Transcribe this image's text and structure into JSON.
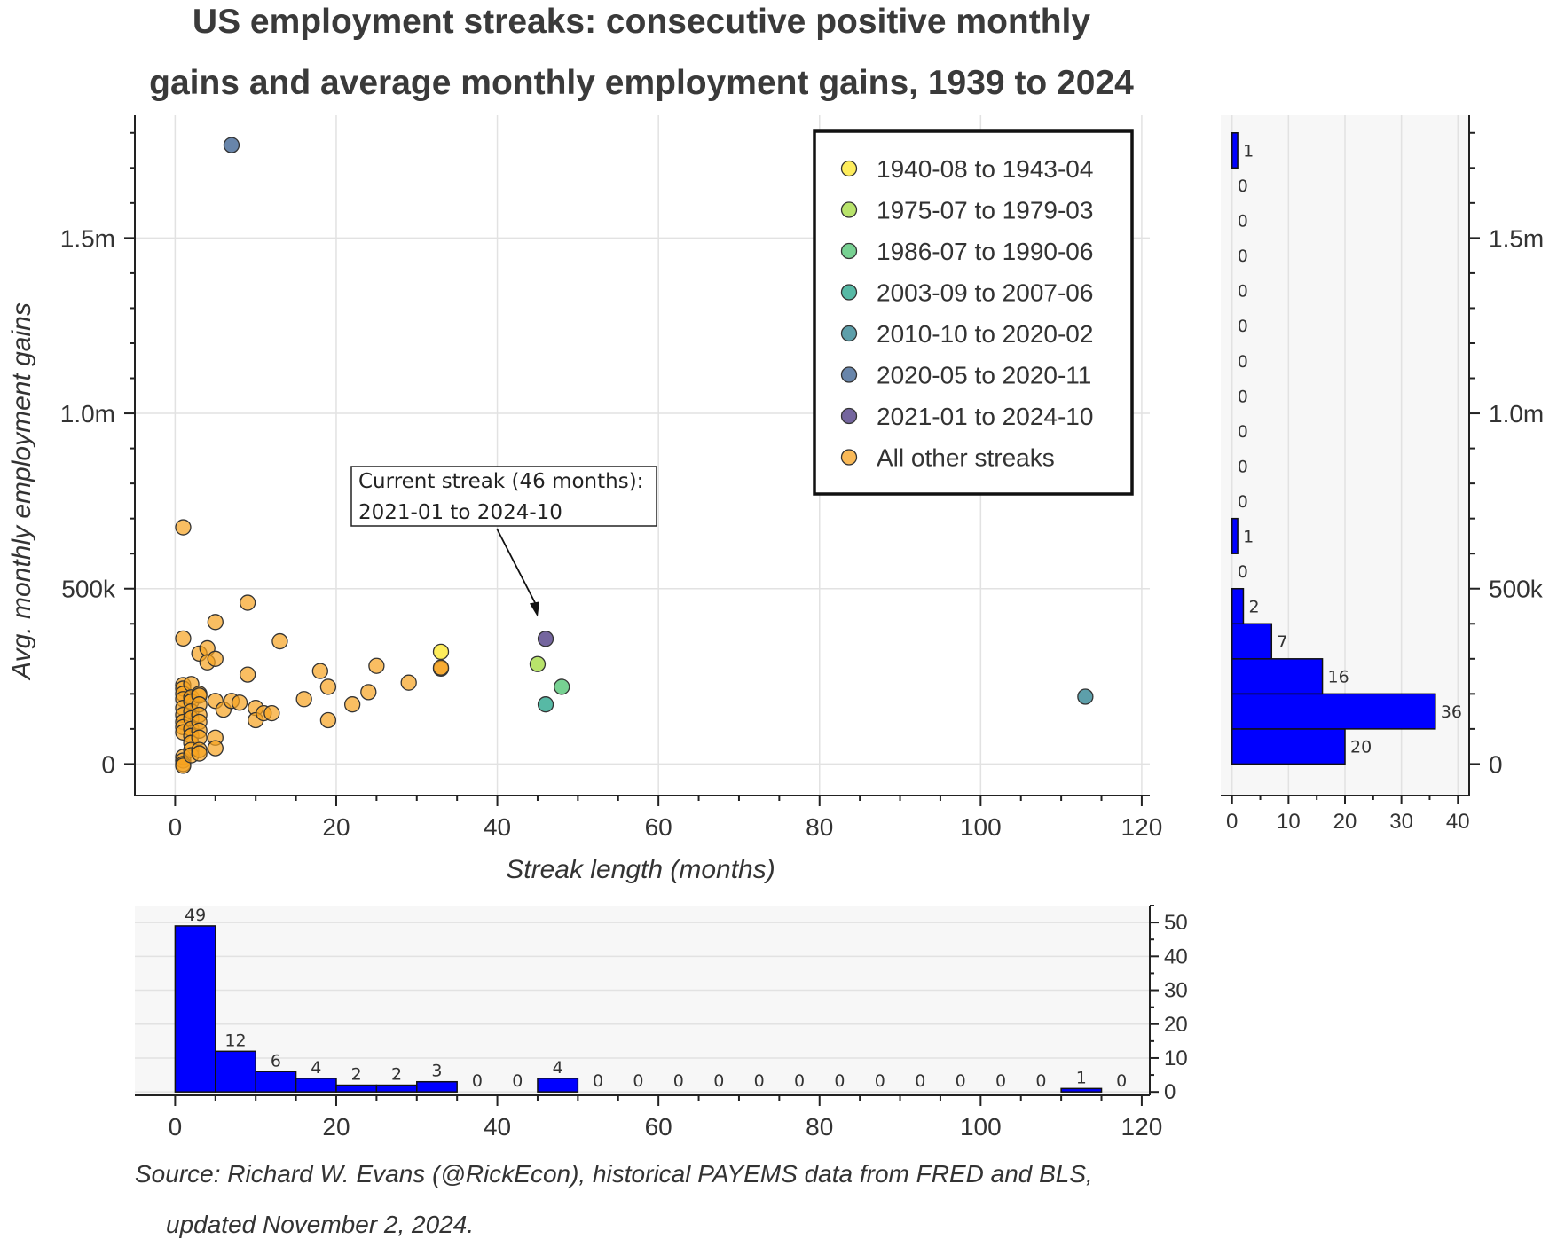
{
  "title_lines": [
    "US employment streaks: consecutive positive monthly",
    "gains and average monthly employment gains, 1939 to 2024"
  ],
  "source_lines": [
    "Source: Richard W. Evans (@RickEcon), historical PAYEMS data from FRED and BLS,",
    "updated November 2, 2024."
  ],
  "annotation": {
    "lines": [
      "Current streak (46 months):",
      "2021-01 to 2024-10"
    ],
    "target": {
      "x": 45,
      "y": 420000
    }
  },
  "colors": {
    "bars": "#0000ff",
    "other_streaks": "#f7a21f",
    "panel_bg": "#f7f7f7"
  },
  "chart_data": [
    {
      "type": "scatter",
      "title": "US employment streaks: consecutive positive monthly gains and average monthly employment gains, 1939 to 2024",
      "xlabel": "Streak length (months)",
      "ylabel": "Avg. monthly employment gains",
      "xlim": [
        -5,
        121
      ],
      "ylim": [
        -90000,
        1850000
      ],
      "xticks": [
        0,
        20,
        40,
        60,
        80,
        100,
        120
      ],
      "xtick_labels": [
        "0",
        "20",
        "40",
        "60",
        "80",
        "100",
        "120"
      ],
      "yticks": [
        0,
        500000,
        1000000,
        1500000
      ],
      "ytick_labels": [
        "0",
        "500k",
        "1.0m",
        "1.5m"
      ],
      "grid": true,
      "legend_position": "top-right",
      "series": [
        {
          "name": "1940-08 to 1943-04",
          "color": "#fde725",
          "points": [
            [
              33,
              320000
            ]
          ]
        },
        {
          "name": "1975-07 to 1979-03",
          "color": "#a0da39",
          "points": [
            [
              45,
              285000
            ]
          ]
        },
        {
          "name": "1986-07 to 1990-06",
          "color": "#4ac16d",
          "points": [
            [
              48,
              220000
            ]
          ]
        },
        {
          "name": "2003-09 to 2007-06",
          "color": "#1fa187",
          "points": [
            [
              46,
              170000
            ]
          ]
        },
        {
          "name": "2010-10 to 2020-02",
          "color": "#277f8e",
          "points": [
            [
              113,
              192000
            ]
          ]
        },
        {
          "name": "2020-05 to 2020-11",
          "color": "#365c8d",
          "points": [
            [
              7,
              1765000
            ]
          ]
        },
        {
          "name": "2021-01 to 2024-10",
          "color": "#46327e",
          "points": [
            [
              46,
              357000
            ]
          ]
        },
        {
          "name": "All other streaks",
          "color": "#f7a21f",
          "points": [
            [
              1,
              675000
            ],
            [
              1,
              358000
            ],
            [
              1,
              225000
            ],
            [
              1,
              215000
            ],
            [
              1,
              200000
            ],
            [
              1,
              185000
            ],
            [
              1,
              160000
            ],
            [
              1,
              140000
            ],
            [
              1,
              120000
            ],
            [
              1,
              105000
            ],
            [
              1,
              90000
            ],
            [
              1,
              20000
            ],
            [
              1,
              10000
            ],
            [
              1,
              0
            ],
            [
              1,
              -5000
            ],
            [
              2,
              228000
            ],
            [
              2,
              190000
            ],
            [
              2,
              178000
            ],
            [
              2,
              150000
            ],
            [
              2,
              130000
            ],
            [
              2,
              100000
            ],
            [
              2,
              80000
            ],
            [
              2,
              60000
            ],
            [
              2,
              40000
            ],
            [
              2,
              25000
            ],
            [
              3,
              315000
            ],
            [
              3,
              200000
            ],
            [
              3,
              195000
            ],
            [
              3,
              170000
            ],
            [
              3,
              140000
            ],
            [
              3,
              120000
            ],
            [
              3,
              95000
            ],
            [
              3,
              75000
            ],
            [
              3,
              40000
            ],
            [
              3,
              30000
            ],
            [
              4,
              330000
            ],
            [
              4,
              290000
            ],
            [
              5,
              405000
            ],
            [
              5,
              300000
            ],
            [
              5,
              180000
            ],
            [
              5,
              75000
            ],
            [
              5,
              45000
            ],
            [
              6,
              155000
            ],
            [
              7,
              180000
            ],
            [
              8,
              175000
            ],
            [
              9,
              460000
            ],
            [
              9,
              255000
            ],
            [
              10,
              160000
            ],
            [
              10,
              125000
            ],
            [
              11,
              145000
            ],
            [
              12,
              145000
            ],
            [
              13,
              350000
            ],
            [
              16,
              185000
            ],
            [
              18,
              265000
            ],
            [
              19,
              220000
            ],
            [
              19,
              125000
            ],
            [
              22,
              170000
            ],
            [
              24,
              205000
            ],
            [
              25,
              280000
            ],
            [
              29,
              232000
            ],
            [
              33,
              272000
            ],
            [
              33,
              275000
            ]
          ]
        }
      ]
    },
    {
      "type": "bar",
      "orientation": "horizontal",
      "description_of_axes": "counts of streaks per avg. gains bin",
      "bin_edges": [
        0,
        100000,
        200000,
        300000,
        400000,
        500000,
        600000,
        700000,
        800000,
        900000,
        1000000,
        1100000,
        1200000,
        1300000,
        1400000,
        1500000,
        1600000,
        1700000,
        1800000
      ],
      "values": [
        20,
        36,
        16,
        7,
        2,
        0,
        1,
        0,
        0,
        0,
        0,
        0,
        0,
        0,
        0,
        0,
        0,
        1
      ],
      "xlim": [
        -2,
        42
      ],
      "xticks": [
        0,
        10,
        20,
        30,
        40
      ],
      "xtick_labels": [
        "0",
        "10",
        "20",
        "30",
        "40"
      ],
      "yticks": [
        0,
        500000,
        1000000,
        1500000
      ],
      "ytick_labels": [
        "0",
        "500k",
        "1.0m",
        "1.5m"
      ]
    },
    {
      "type": "bar",
      "orientation": "vertical",
      "bin_edges": [
        0,
        5,
        10,
        15,
        20,
        25,
        30,
        35,
        40,
        45,
        50,
        55,
        60,
        65,
        70,
        75,
        80,
        85,
        90,
        95,
        100,
        105,
        110,
        115,
        120
      ],
      "values": [
        49,
        12,
        6,
        4,
        2,
        2,
        3,
        0,
        0,
        4,
        0,
        0,
        0,
        0,
        0,
        0,
        0,
        0,
        0,
        0,
        0,
        0,
        1,
        0
      ],
      "ylim": [
        -1,
        55
      ],
      "yticks": [
        0,
        10,
        20,
        30,
        40,
        50
      ],
      "ytick_labels": [
        "0",
        "10",
        "20",
        "30",
        "40",
        "50"
      ],
      "xticks": [
        0,
        20,
        40,
        60,
        80,
        100,
        120
      ],
      "xtick_labels": [
        "0",
        "20",
        "40",
        "60",
        "80",
        "100",
        "120"
      ]
    }
  ]
}
